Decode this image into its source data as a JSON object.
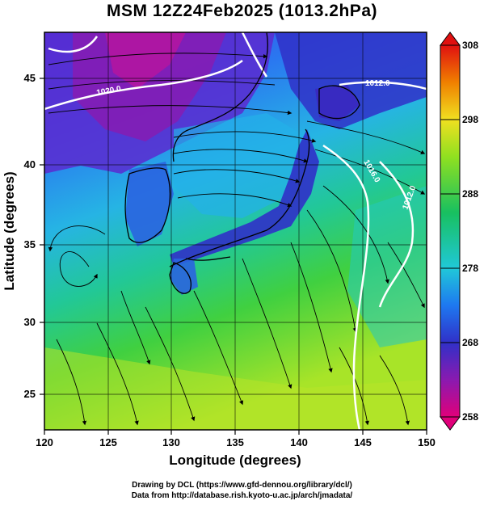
{
  "title": "MSM 12Z24Feb2025 (1013.2hPa)",
  "x_axis": {
    "label": "Longitude (degrees)",
    "ticks": [
      "120",
      "125",
      "130",
      "135",
      "140",
      "145",
      "150"
    ],
    "range": [
      120,
      150
    ]
  },
  "y_axis": {
    "label": "Latitude  (degrees)",
    "ticks": [
      "25",
      "30",
      "35",
      "40",
      "45"
    ],
    "range": [
      22.5,
      47.5
    ]
  },
  "colorbar": {
    "ticks": [
      "258",
      "268",
      "278",
      "288",
      "298",
      "308"
    ],
    "range": [
      258,
      308
    ],
    "palette": [
      "#e0007a",
      "#8a1ab0",
      "#3030c8",
      "#1e78f0",
      "#20c8d8",
      "#18c060",
      "#90e020",
      "#f0e020",
      "#f08000",
      "#e01010"
    ]
  },
  "isobars": [
    {
      "label": "1020.0"
    },
    {
      "label": "1012.0"
    },
    {
      "label": "1016.0"
    },
    {
      "label": "1012.0"
    }
  ],
  "credits": {
    "line1": "Drawing by DCL (https://www.gfd-dennou.org/library/dcl/)",
    "line2": "Data from http://database.rish.kyoto-u.ac.jp/arch/jmadata/"
  }
}
